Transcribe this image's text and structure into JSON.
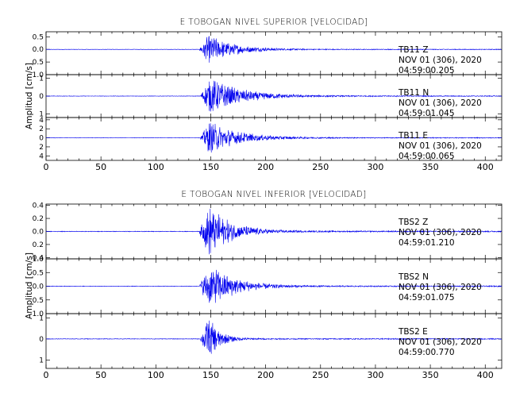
{
  "chart_data": [
    {
      "type": "line",
      "title": "E TOBOGAN NIVEL SUPERIOR [VELOCIDAD]",
      "ylabel": "Amplitud [cm/s]",
      "xlim": [
        0,
        415
      ],
      "xticks": [
        0,
        50,
        100,
        150,
        200,
        250,
        300,
        350,
        400
      ],
      "grid": false,
      "panels": [
        {
          "channel": "TB11   Z",
          "date": "NOV 01 (306), 2020",
          "time": "04:59:00.205",
          "ylim": [
            -1.0,
            0.7
          ],
          "yticks": [
            -1.0,
            -0.5,
            0.0,
            0.5
          ],
          "ytick_labels": [
            "1.0",
            "0.5",
            "0.0",
            "0.5"
          ],
          "onset": 140,
          "peak_time": 148,
          "peak_amplitude": 0.62,
          "decay": 22
        },
        {
          "channel": "TB11   N",
          "date": "NOV 01 (306), 2020",
          "time": "04:59:01.045",
          "ylim": [
            -1.2,
            1.2
          ],
          "yticks": [
            -1,
            0,
            1
          ],
          "ytick_labels": [
            "1",
            "0",
            "1"
          ],
          "onset": 141,
          "peak_time": 150,
          "peak_amplitude": 1.05,
          "decay": 28
        },
        {
          "channel": "TB11   E",
          "date": "NOV 01 (306), 2020",
          "time": "04:59:00.065",
          "ylim": [
            -5,
            4.5
          ],
          "yticks": [
            -4,
            -2,
            0,
            2,
            4
          ],
          "ytick_labels": [
            "4",
            "2",
            "0",
            "2",
            "4"
          ],
          "onset": 141,
          "peak_time": 149,
          "peak_amplitude": 3.8,
          "decay": 26
        }
      ]
    },
    {
      "type": "line",
      "title": "E TOBOGAN NIVEL INFERIOR [VELOCIDAD]",
      "ylabel": "Amplitud [cm/s]",
      "xlim": [
        0,
        415
      ],
      "xticks": [
        0,
        50,
        100,
        150,
        200,
        250,
        300,
        350,
        400
      ],
      "grid": false,
      "panels": [
        {
          "channel": "TBS2   Z",
          "date": "NOV 01 (306), 2020",
          "time": "04:59:01.210",
          "ylim": [
            -0.42,
            0.42
          ],
          "yticks": [
            -0.4,
            -0.2,
            0.0,
            0.2,
            0.4
          ],
          "ytick_labels": [
            "0.4",
            "0.2",
            "0.0",
            "0.2",
            "0.4"
          ],
          "onset": 140,
          "peak_time": 149,
          "peak_amplitude": 0.4,
          "decay": 20
        },
        {
          "channel": "TBS2   N",
          "date": "NOV 01 (306), 2020",
          "time": "04:59:01.075",
          "ylim": [
            -1.0,
            1.0
          ],
          "yticks": [
            -1.0,
            -0.5,
            0.0,
            0.5,
            1.0
          ],
          "ytick_labels": [
            "1.0",
            "0.5",
            "0.0",
            "0.5",
            "1.0"
          ],
          "onset": 140,
          "peak_time": 150,
          "peak_amplitude": 0.85,
          "decay": 22
        },
        {
          "channel": "TBS2   E",
          "date": "NOV 01 (306), 2020",
          "time": "04:59:00.770",
          "ylim": [
            -1.4,
            1.2
          ],
          "yticks": [
            -1,
            0,
            1
          ],
          "ytick_labels": [
            "1",
            "0",
            "1"
          ],
          "onset": 141,
          "peak_time": 148,
          "peak_amplitude": 1.1,
          "decay": 10
        }
      ]
    }
  ],
  "colors": {
    "trace": "#0000ee",
    "axes": "#000000",
    "background": "#ffffff"
  }
}
